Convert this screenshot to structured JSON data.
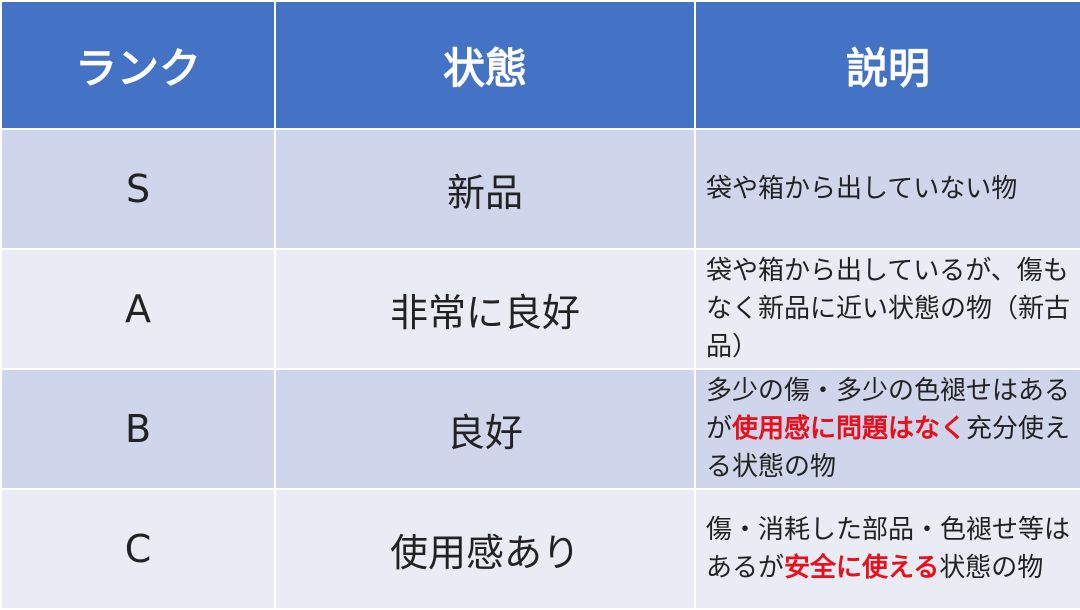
{
  "headers": [
    "ランク",
    "状態",
    "説明"
  ],
  "colors": {
    "header_bg": "#4472C4",
    "row_dark": "#CFD5EA",
    "row_light": "#E9EBF5",
    "emphasis": "#E8101A"
  },
  "rows": [
    {
      "rank": "S",
      "state": "新品",
      "desc": [
        {
          "text": "袋や箱から出していない物",
          "em": false
        }
      ]
    },
    {
      "rank": "A",
      "state": "非常に良好",
      "desc": [
        {
          "text": "袋や箱から出しているが、傷もなく新品に近い状態の物（新古品）",
          "em": false
        }
      ]
    },
    {
      "rank": "B",
      "state": "良好",
      "desc": [
        {
          "text": "多少の傷・多少の色褪せはあるが",
          "em": false
        },
        {
          "text": "使用感に問題はなく",
          "em": true
        },
        {
          "text": "充分使える状態の物",
          "em": false
        }
      ]
    },
    {
      "rank": "C",
      "state": "使用感あり",
      "desc": [
        {
          "text": "傷・消耗した部品・色褪せ等はあるが",
          "em": false
        },
        {
          "text": "安全に使える",
          "em": true
        },
        {
          "text": "状態の物",
          "em": false
        }
      ]
    }
  ]
}
